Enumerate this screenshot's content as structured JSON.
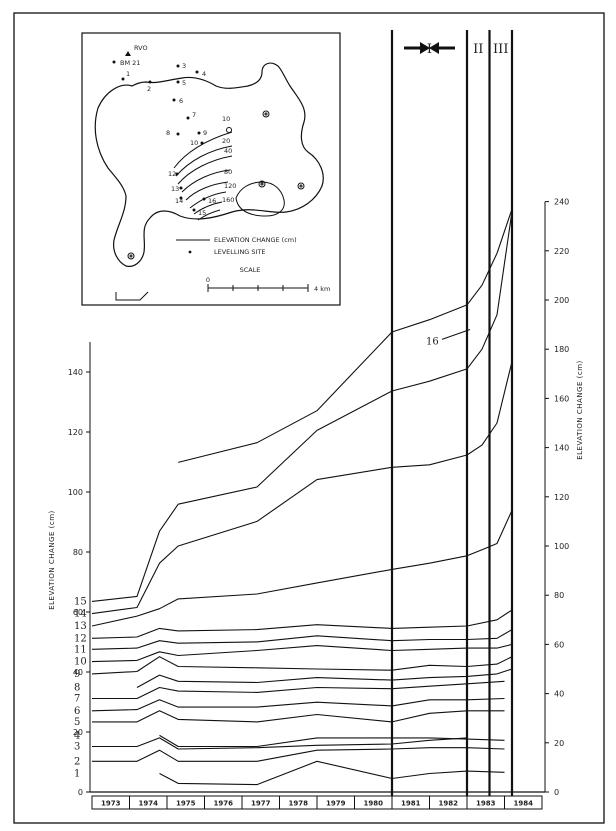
{
  "chart_data": {
    "type": "line",
    "ylabel_left": "ELEVATION CHANGE (cm)",
    "ylabel_right": "ELEVATION CHANGE (cm)",
    "y_left_range": [
      0,
      150
    ],
    "y_left_ticks": [
      0,
      20,
      40,
      60,
      80,
      100,
      120,
      140
    ],
    "y_right_range": [
      0,
      240
    ],
    "y_right_ticks": [
      0,
      20,
      40,
      60,
      80,
      100,
      120,
      140,
      160,
      180,
      200,
      220,
      240
    ],
    "x_range": [
      1973,
      1985
    ],
    "year_labels": [
      "1973",
      "1974",
      "1975",
      "1976",
      "1977",
      "1978",
      "1979",
      "1980",
      "1981",
      "1982",
      "1983",
      "1984"
    ],
    "periods": [
      {
        "label": "I",
        "x_start": 1981,
        "x_end": 1983
      },
      {
        "label": "II",
        "x_start": 1983,
        "x_end": 1983.6
      },
      {
        "label": "III",
        "x_start": 1983.6,
        "x_end": 1984.2
      }
    ],
    "series": [
      {
        "label": "1",
        "points": [
          [
            1974.8,
            7.5
          ],
          [
            1975.3,
            3.5
          ],
          [
            1977.4,
            3
          ],
          [
            1979,
            12.5
          ],
          [
            1981,
            5.5
          ],
          [
            1982,
            7.5
          ],
          [
            1983,
            8.5
          ],
          [
            1984,
            8
          ]
        ]
      },
      {
        "label": "2",
        "points": [
          [
            1973,
            12.5
          ],
          [
            1974.2,
            12.5
          ],
          [
            1974.8,
            17
          ],
          [
            1975.3,
            12.5
          ],
          [
            1977.4,
            12.5
          ],
          [
            1979,
            17
          ],
          [
            1981,
            17.5
          ],
          [
            1982,
            18
          ],
          [
            1983,
            18
          ],
          [
            1984,
            17.5
          ]
        ]
      },
      {
        "label": "3",
        "points": [
          [
            1973,
            18.5
          ],
          [
            1974.2,
            18.5
          ],
          [
            1974.8,
            22
          ],
          [
            1975.3,
            17.5
          ],
          [
            1977.4,
            18
          ],
          [
            1979,
            19
          ],
          [
            1981,
            19.5
          ],
          [
            1982,
            21
          ],
          [
            1983,
            22
          ]
        ]
      },
      {
        "label": "4",
        "points": [
          [
            1974.8,
            23
          ],
          [
            1975.3,
            18.5
          ],
          [
            1977.4,
            18.5
          ],
          [
            1979,
            22
          ],
          [
            1981,
            22
          ],
          [
            1982,
            22
          ],
          [
            1983,
            21.5
          ],
          [
            1984,
            21
          ]
        ]
      },
      {
        "label": "5",
        "points": [
          [
            1973,
            28.5
          ],
          [
            1974.2,
            28.5
          ],
          [
            1974.8,
            33
          ],
          [
            1975.3,
            29.5
          ],
          [
            1977.4,
            28.5
          ],
          [
            1979,
            31.5
          ],
          [
            1981,
            28.5
          ],
          [
            1982,
            32
          ],
          [
            1983,
            33
          ],
          [
            1984,
            33
          ]
        ]
      },
      {
        "label": "6",
        "points": [
          [
            1973,
            33
          ],
          [
            1974.2,
            33.5
          ],
          [
            1974.8,
            37.5
          ],
          [
            1975.3,
            34.5
          ],
          [
            1977.4,
            34.5
          ],
          [
            1979,
            36.5
          ],
          [
            1981,
            35
          ],
          [
            1982,
            37.5
          ],
          [
            1983,
            37.5
          ],
          [
            1984,
            38
          ]
        ]
      },
      {
        "label": "7",
        "points": [
          [
            1973,
            38
          ],
          [
            1974.2,
            38
          ],
          [
            1974.8,
            42.5
          ],
          [
            1975.3,
            41
          ],
          [
            1977.4,
            40.5
          ],
          [
            1979,
            42.5
          ],
          [
            1981,
            42
          ],
          [
            1982,
            43
          ],
          [
            1983,
            44
          ],
          [
            1984,
            45
          ]
        ]
      },
      {
        "label": "8",
        "points": [
          [
            1974.2,
            42.5
          ],
          [
            1974.8,
            47.5
          ],
          [
            1975.3,
            45
          ],
          [
            1977.4,
            44.5
          ],
          [
            1979,
            46.5
          ],
          [
            1981,
            45.5
          ],
          [
            1982,
            46.5
          ],
          [
            1983,
            47
          ],
          [
            1983.8,
            48
          ],
          [
            1984.2,
            50
          ]
        ]
      },
      {
        "label": "9",
        "points": [
          [
            1973,
            48
          ],
          [
            1974.2,
            49
          ],
          [
            1974.8,
            55
          ],
          [
            1975.3,
            51
          ],
          [
            1977.4,
            50.5
          ],
          [
            1979,
            50
          ],
          [
            1981,
            49.5
          ],
          [
            1982,
            51.5
          ],
          [
            1983,
            51
          ],
          [
            1983.8,
            52
          ],
          [
            1984.2,
            55
          ]
        ]
      },
      {
        "label": "10",
        "points": [
          [
            1973,
            53
          ],
          [
            1974.2,
            53.5
          ],
          [
            1974.8,
            57
          ],
          [
            1975.3,
            55.5
          ],
          [
            1977.4,
            57.5
          ],
          [
            1979,
            59.5
          ],
          [
            1981,
            57.5
          ],
          [
            1982,
            58
          ],
          [
            1983,
            58.5
          ],
          [
            1983.8,
            58.5
          ],
          [
            1984.2,
            60
          ]
        ]
      },
      {
        "label": "11",
        "points": [
          [
            1973,
            58
          ],
          [
            1974.2,
            58.5
          ],
          [
            1974.8,
            61.5
          ],
          [
            1975.3,
            60.5
          ],
          [
            1977.4,
            61
          ],
          [
            1979,
            63.5
          ],
          [
            1981,
            61.5
          ],
          [
            1982,
            62
          ],
          [
            1983,
            62
          ],
          [
            1983.8,
            62.5
          ],
          [
            1984.2,
            66
          ]
        ]
      },
      {
        "label": "12",
        "points": [
          [
            1973,
            62.5
          ],
          [
            1974.2,
            63
          ],
          [
            1974.8,
            66.5
          ],
          [
            1975.3,
            65.5
          ],
          [
            1977.4,
            66
          ],
          [
            1979,
            68
          ],
          [
            1981,
            66.5
          ],
          [
            1982,
            67
          ],
          [
            1983,
            67.5
          ],
          [
            1983.8,
            70
          ],
          [
            1984.2,
            74
          ]
        ]
      },
      {
        "label": "13",
        "points": [
          [
            1973,
            67.5
          ],
          [
            1974.2,
            71.5
          ],
          [
            1974.8,
            74.5
          ],
          [
            1975.3,
            78.5
          ],
          [
            1977.4,
            80.5
          ],
          [
            1979,
            85
          ],
          [
            1981,
            90.5
          ],
          [
            1982,
            93
          ],
          [
            1983,
            96
          ],
          [
            1983.4,
            98.5
          ],
          [
            1983.8,
            101
          ],
          [
            1984.2,
            114.5
          ]
        ]
      },
      {
        "label": "14",
        "points": [
          [
            1973,
            72.5
          ],
          [
            1974.2,
            75
          ],
          [
            1974.8,
            93
          ],
          [
            1975.3,
            100
          ],
          [
            1977.4,
            110
          ],
          [
            1979,
            127
          ],
          [
            1981,
            132
          ],
          [
            1982,
            133
          ],
          [
            1983,
            137
          ],
          [
            1983.4,
            141
          ],
          [
            1983.8,
            150
          ],
          [
            1984.2,
            175
          ]
        ]
      },
      {
        "label": "15",
        "points": [
          [
            1973,
            77.5
          ],
          [
            1974.2,
            79.5
          ],
          [
            1974.8,
            106
          ],
          [
            1975.3,
            117
          ],
          [
            1977.4,
            124
          ],
          [
            1979,
            147
          ],
          [
            1981,
            163
          ],
          [
            1982,
            167
          ],
          [
            1983,
            172
          ],
          [
            1983.4,
            180
          ],
          [
            1983.8,
            194
          ],
          [
            1984.2,
            236
          ]
        ]
      },
      {
        "label": "16",
        "points": [
          [
            1975.3,
            134
          ],
          [
            1977.4,
            142
          ],
          [
            1979,
            155
          ],
          [
            1981,
            187
          ],
          [
            1982,
            192
          ],
          [
            1983,
            198
          ],
          [
            1983.4,
            206
          ],
          [
            1983.8,
            219
          ],
          [
            1984.2,
            237
          ]
        ]
      }
    ]
  },
  "inset_map": {
    "site_labels": [
      "RVO",
      "BM 21",
      "1",
      "2",
      "3",
      "4",
      "5",
      "6",
      "7",
      "8",
      "9",
      "10",
      "12",
      "13",
      "14",
      "15",
      "16"
    ],
    "contour_labels": [
      "10",
      "20",
      "40",
      "80",
      "120",
      "160"
    ],
    "legend_contour": "ELEVATION CHANGE (cm)",
    "legend_site": "LEVELLING SITE",
    "scale_title": "SCALE",
    "scale_start": "0",
    "scale_end": "4 km"
  }
}
